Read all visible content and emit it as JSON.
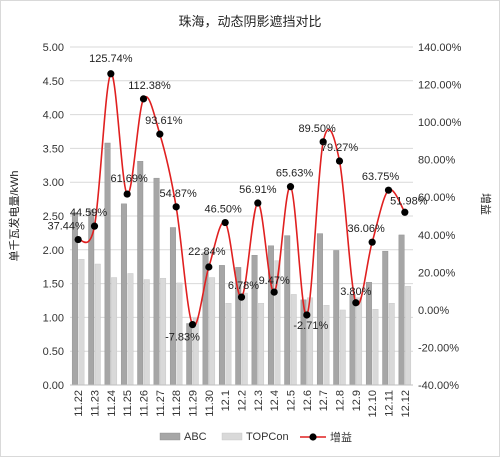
{
  "chart_data": {
    "type": "bar",
    "title": "珠海，动态阴影遮挡对比",
    "ylabel_left": "单千瓦发电量/kWh",
    "ylabel_right": "增益",
    "ylim_left": [
      0,
      5
    ],
    "yticks_left": [
      "0.00",
      "0.50",
      "1.00",
      "1.50",
      "2.00",
      "2.50",
      "3.00",
      "3.50",
      "4.00",
      "4.50",
      "5.00"
    ],
    "ylim_right": [
      -40,
      140
    ],
    "yticks_right": [
      "-40.00%",
      "-20.00%",
      "0.00%",
      "20.00%",
      "40.00%",
      "60.00%",
      "80.00%",
      "100.00%",
      "120.00%",
      "140.00%"
    ],
    "categories": [
      "11.22",
      "11.23",
      "11.24",
      "11.25",
      "11.26",
      "11.27",
      "11.28",
      "11.29",
      "11.30",
      "12.1",
      "12.2",
      "12.3",
      "12.4",
      "12.5",
      "12.6",
      "12.7",
      "12.8",
      "12.9",
      "12.10",
      "12.11",
      "12.12"
    ],
    "series": [
      {
        "name": "ABC",
        "type": "bar",
        "axis": "left",
        "color": "#a6a6a6",
        "values": [
          2.55,
          2.59,
          3.58,
          2.68,
          3.31,
          3.06,
          2.33,
          0.91,
          1.96,
          1.77,
          1.74,
          1.92,
          2.06,
          2.21,
          1.26,
          2.24,
          1.99,
          1.34,
          1.52,
          1.98,
          2.22
        ]
      },
      {
        "name": "TOPCon",
        "type": "bar",
        "axis": "left",
        "color": "#d9d9d9",
        "values": [
          1.86,
          1.79,
          1.59,
          1.65,
          1.56,
          1.58,
          1.51,
          0.99,
          1.59,
          1.21,
          1.36,
          1.21,
          1.84,
          1.34,
          1.29,
          1.18,
          1.11,
          1.29,
          1.12,
          1.21,
          1.46
        ]
      },
      {
        "name": "增益",
        "type": "line",
        "axis": "right",
        "color": "#e02020",
        "values": [
          37.44,
          44.59,
          125.74,
          61.69,
          112.38,
          93.61,
          54.87,
          -7.83,
          22.84,
          46.5,
          6.78,
          56.91,
          9.47,
          65.63,
          -2.71,
          89.5,
          79.27,
          3.8,
          36.06,
          63.75,
          51.98
        ],
        "labels": [
          "37.44%",
          "44.59%",
          "125.74%",
          "61.69%",
          "112.38%",
          "93.61%",
          "54.87%",
          "-7.83%",
          "22.84%",
          "46.50%",
          "6.78%",
          "56.91%",
          "9.47%",
          "65.63%",
          "-2.71%",
          "89.50%",
          "79.27%",
          "3.80%",
          "36.06%",
          "63.75%",
          "51.98%"
        ]
      }
    ],
    "grid": true,
    "legend_position": "bottom"
  }
}
